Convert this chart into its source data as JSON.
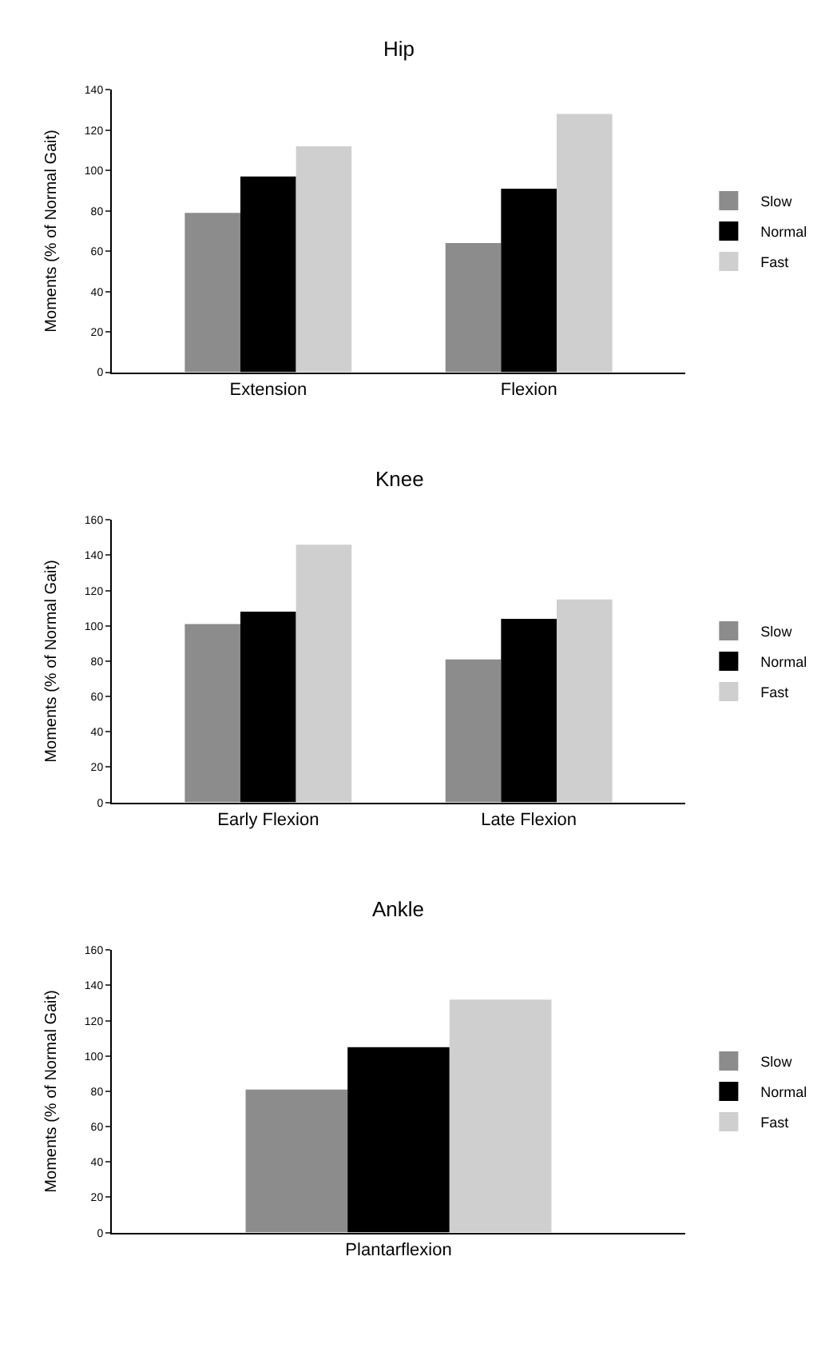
{
  "chart_data": [
    {
      "type": "bar",
      "title": "Hip",
      "ylabel": "Moments (% of Normal Gait)",
      "categories": [
        "Extension",
        "Flexion"
      ],
      "series": [
        {
          "name": "Slow",
          "color": "#8c8c8c",
          "values": [
            79,
            64
          ]
        },
        {
          "name": "Normal",
          "color": "#000000",
          "values": [
            97,
            91
          ]
        },
        {
          "name": "Fast",
          "color": "#cfcfcf",
          "values": [
            112,
            128
          ]
        }
      ],
      "ylim": [
        0,
        140
      ],
      "yticks": [
        0,
        20,
        40,
        60,
        80,
        100,
        120,
        140
      ],
      "legend": "right"
    },
    {
      "type": "bar",
      "title": "Knee",
      "ylabel": "Moments (% of Normal Gait)",
      "categories": [
        "Early Flexion",
        "Late Flexion"
      ],
      "series": [
        {
          "name": "Slow",
          "color": "#8c8c8c",
          "values": [
            101,
            81
          ]
        },
        {
          "name": "Normal",
          "color": "#000000",
          "values": [
            108,
            104
          ]
        },
        {
          "name": "Fast",
          "color": "#cfcfcf",
          "values": [
            146,
            115
          ]
        }
      ],
      "ylim": [
        0,
        160
      ],
      "yticks": [
        0,
        20,
        40,
        60,
        80,
        100,
        120,
        140,
        160
      ],
      "legend": "right"
    },
    {
      "type": "bar",
      "title": "Ankle",
      "ylabel": "Moments (% of Normal Gait)",
      "categories": [
        "Plantarflexion"
      ],
      "series": [
        {
          "name": "Slow",
          "color": "#8c8c8c",
          "values": [
            81
          ]
        },
        {
          "name": "Normal",
          "color": "#000000",
          "values": [
            105
          ]
        },
        {
          "name": "Fast",
          "color": "#cfcfcf",
          "values": [
            132
          ]
        }
      ],
      "ylim": [
        0,
        160
      ],
      "yticks": [
        0,
        20,
        40,
        60,
        80,
        100,
        120,
        140,
        160
      ],
      "legend": "right"
    }
  ]
}
